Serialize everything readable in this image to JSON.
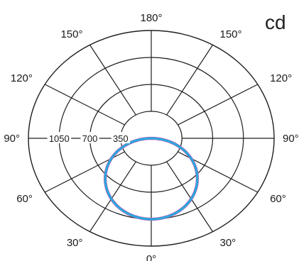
{
  "chart_data": {
    "type": "polar",
    "unit_label": "cd",
    "angle_labels": [
      {
        "angle": 180,
        "text": "180°"
      },
      {
        "angle": 150,
        "side": "left",
        "text": "150°"
      },
      {
        "angle": 150,
        "side": "right",
        "text": "150°"
      },
      {
        "angle": 120,
        "side": "left",
        "text": "120°"
      },
      {
        "angle": 120,
        "side": "right",
        "text": "120°"
      },
      {
        "angle": 90,
        "side": "left",
        "text": "90°"
      },
      {
        "angle": 90,
        "side": "right",
        "text": "90°"
      },
      {
        "angle": 60,
        "side": "left",
        "text": "60°"
      },
      {
        "angle": 60,
        "side": "right",
        "text": "60°"
      },
      {
        "angle": 30,
        "side": "left",
        "text": "30°"
      },
      {
        "angle": 30,
        "side": "right",
        "text": "30°"
      },
      {
        "angle": 0,
        "text": "0°"
      }
    ],
    "radial_ticks": [
      350,
      700,
      1050
    ],
    "radial_tick_labels": [
      "350",
      "700",
      "1050"
    ],
    "rmax": 1400,
    "spokes_deg": [
      0,
      30,
      60,
      90,
      120,
      150,
      180
    ],
    "series": [
      {
        "color": "#2aa8e0",
        "accent_color": "#d23c9a",
        "shape": "cosine",
        "peak_value": 1050
      }
    ]
  }
}
